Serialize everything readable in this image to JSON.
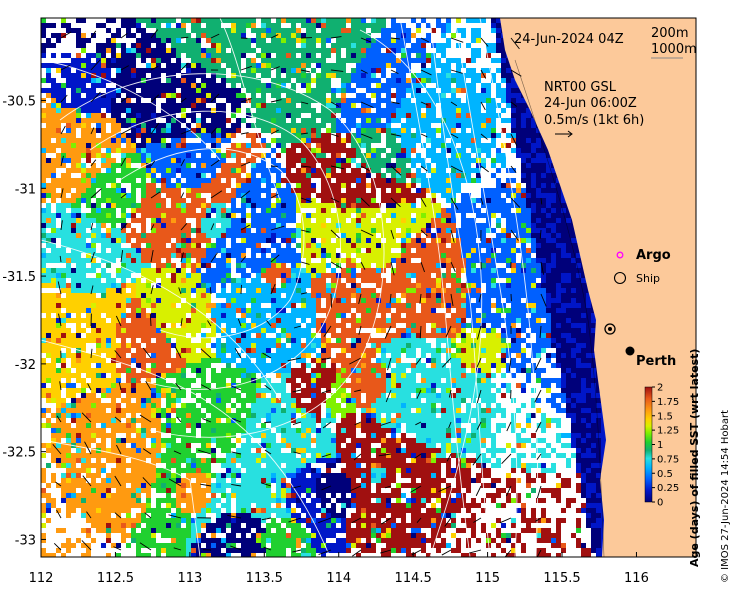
{
  "map": {
    "timestamp": "24-Jun-2024 04Z",
    "depth_legend": [
      "200m",
      "1000m"
    ],
    "current_product": "NRT00 GSL",
    "current_time": "24-Jun 06:00Z",
    "current_scale": "0.5m/s (1kt 6h)",
    "legend": {
      "argo": "Argo",
      "ship": "Ship"
    },
    "place_label": "Perth",
    "credit": "© IMOS 27-Jun-2024 14:54 Hobart"
  },
  "axes": {
    "x_ticks": [
      "112",
      "112.5",
      "113",
      "113.5",
      "114",
      "114.5",
      "115",
      "115.5",
      "116"
    ],
    "y_ticks": [
      "-30.5",
      "-31",
      "-31.5",
      "-32",
      "-32.5",
      "-33"
    ],
    "x_range": [
      112,
      116.4
    ],
    "y_range": [
      -33.1,
      -30.03
    ]
  },
  "colorbar": {
    "label": "Age (days) of filled SST (wrt latest)",
    "ticks": [
      "2",
      "1.75",
      "1.5",
      "1.25",
      "1",
      "0.75",
      "0.5",
      "0.25",
      "0"
    ],
    "range": [
      0,
      2
    ],
    "colors": [
      "#00007a",
      "#0016c8",
      "#0060ff",
      "#00b4ff",
      "#28e0e0",
      "#10b070",
      "#20d030",
      "#80f000",
      "#d8f000",
      "#ffd000",
      "#ff9a10",
      "#e8581a",
      "#a01010"
    ]
  },
  "colors": {
    "land": "#fcc99a",
    "no_data": "#ffffff",
    "contour": "#ffffff",
    "argo": "#ff00ff"
  }
}
